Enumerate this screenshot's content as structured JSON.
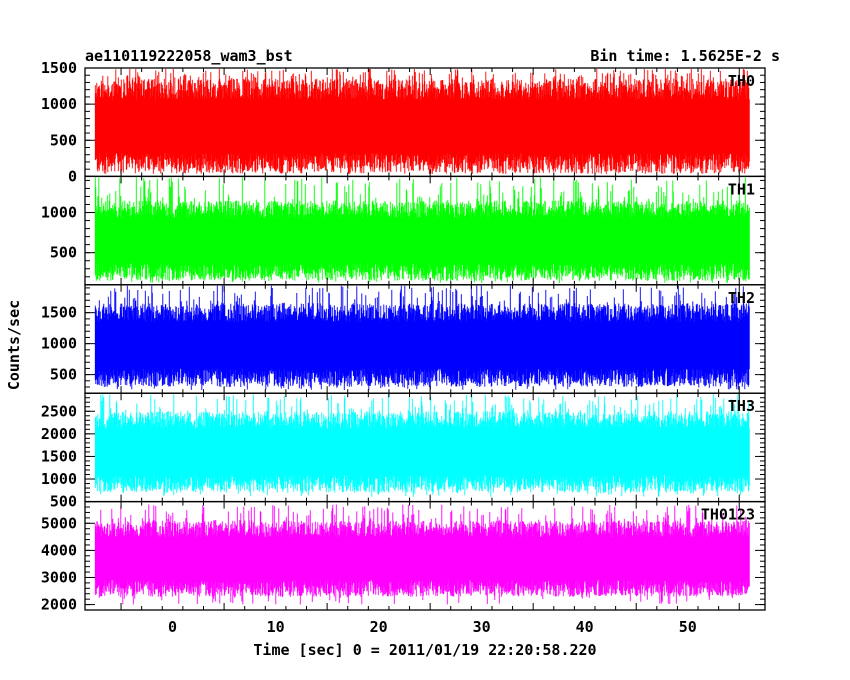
{
  "title_left": "ae110119222058_wam3_bst",
  "title_right": "Bin time: 1.5625E-2 s",
  "xlabel": "Time [sec] 0 = 2011/01/19 22:20:58.220",
  "ylabel": "Counts/sec",
  "chart_data": {
    "type": "line",
    "xlim": [
      -8.5,
      57.5
    ],
    "xticks": [
      0,
      10,
      20,
      30,
      40,
      50
    ],
    "x_data_range": [
      -7.5,
      56
    ],
    "bin_time": 0.015625,
    "panels": [
      {
        "name": "TH0",
        "color": "#ff0000",
        "ylim": [
          0,
          1500
        ],
        "yticks": [
          0,
          500,
          1000,
          1500
        ],
        "band": {
          "low": 180,
          "high": 1350,
          "spike_max": 1500,
          "dip_min": 40
        }
      },
      {
        "name": "TH1",
        "color": "#00ff00",
        "ylim": [
          100,
          1450
        ],
        "yticks": [
          500,
          1000
        ],
        "band": {
          "low": 260,
          "high": 1150,
          "spike_max": 1450,
          "dip_min": 120
        }
      },
      {
        "name": "TH2",
        "color": "#0000ff",
        "ylim": [
          200,
          1950
        ],
        "yticks": [
          500,
          1000,
          1500
        ],
        "band": {
          "low": 450,
          "high": 1650,
          "spike_max": 1950,
          "dip_min": 250
        }
      },
      {
        "name": "TH3",
        "color": "#00ffff",
        "ylim": [
          500,
          2900
        ],
        "yticks": [
          500,
          1000,
          1500,
          2000,
          2500
        ],
        "band": {
          "low": 900,
          "high": 2500,
          "spike_max": 2900,
          "dip_min": 600
        }
      },
      {
        "name": "TH0123",
        "color": "#ff00ff",
        "ylim": [
          1800,
          5800
        ],
        "yticks": [
          2000,
          3000,
          4000,
          5000
        ],
        "band": {
          "low": 2600,
          "high": 5100,
          "spike_max": 5700,
          "dip_min": 2000
        }
      }
    ]
  }
}
